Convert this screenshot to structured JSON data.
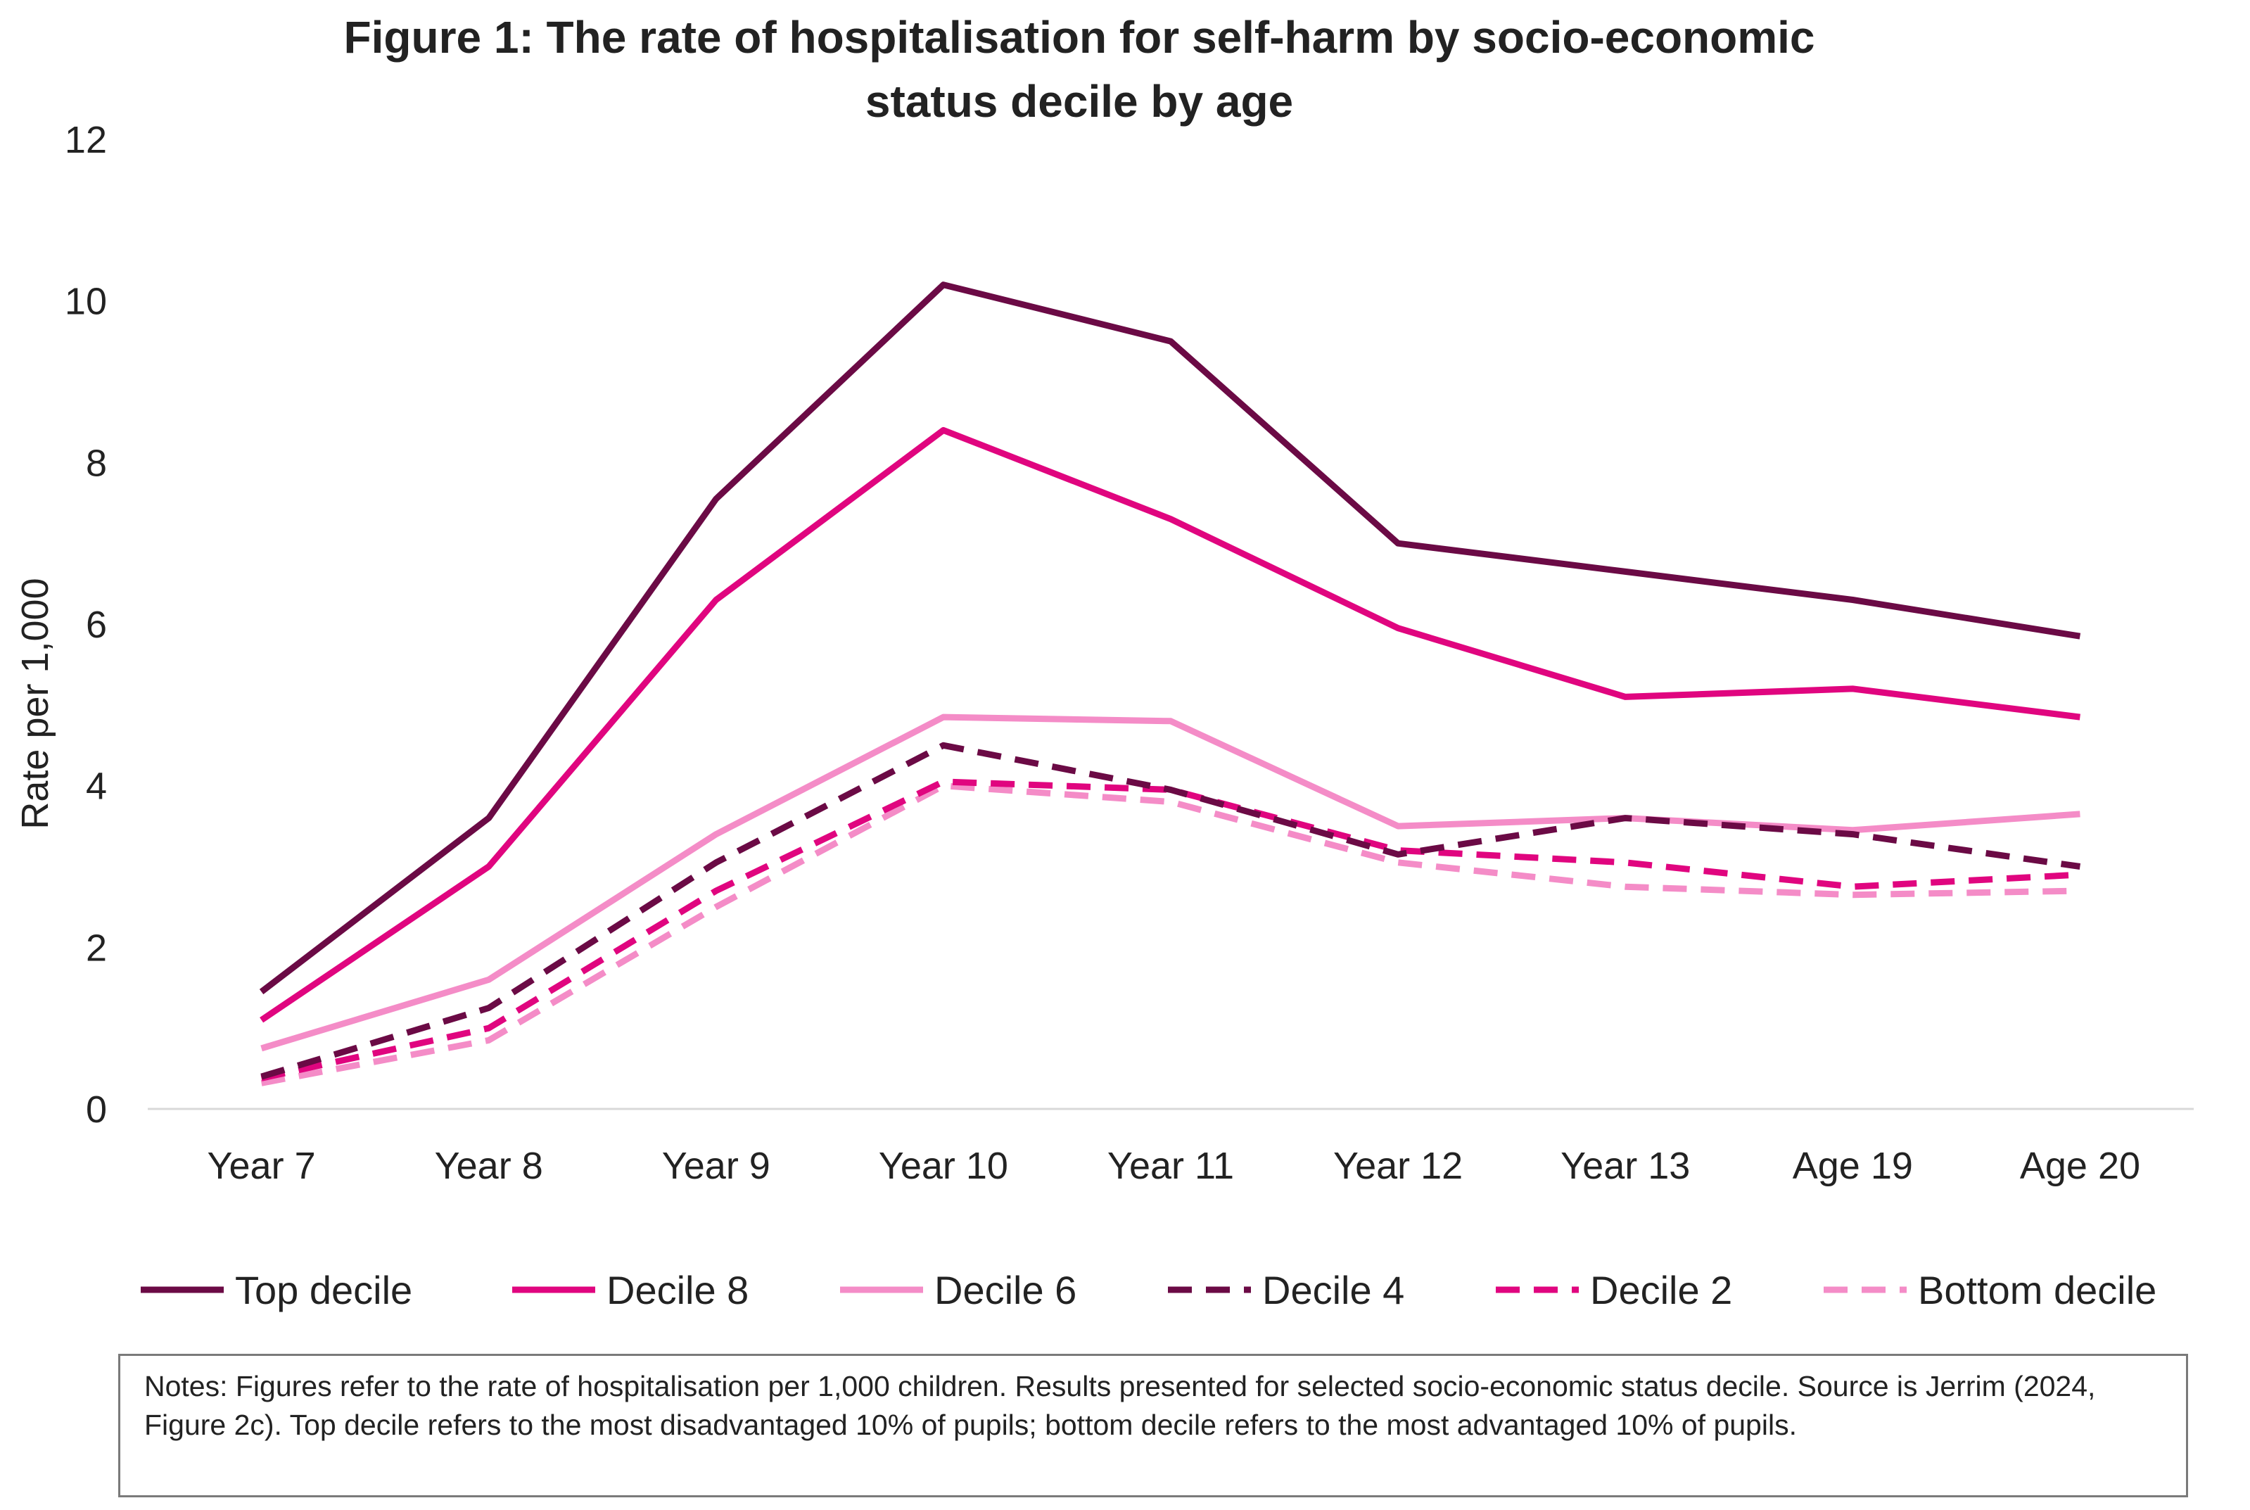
{
  "chart_data": {
    "type": "line",
    "title_lines": [
      "Figure 1: The rate of hospitalisation for self-harm by socio-economic",
      "status decile by age"
    ],
    "xlabel": "",
    "ylabel": "Rate per 1,000",
    "ylim": [
      0,
      12
    ],
    "yticks": [
      "0",
      "2",
      "4",
      "6",
      "8",
      "10",
      "12"
    ],
    "categories": [
      "Year 7",
      "Year 8",
      "Year 9",
      "Year 10",
      "Year 11",
      "Year 12",
      "Year 13",
      "Age 19",
      "Age 20"
    ],
    "legend_position": "bottom",
    "grid": false,
    "series": [
      {
        "name": "Top decile",
        "color": "#6b0a45",
        "dash": "solid",
        "values": [
          1.45,
          3.6,
          7.55,
          10.2,
          9.5,
          7.0,
          6.65,
          6.3,
          5.85
        ]
      },
      {
        "name": "Decile 8",
        "color": "#e0057f",
        "dash": "solid",
        "values": [
          1.1,
          3.0,
          6.3,
          8.4,
          7.3,
          5.95,
          5.1,
          5.2,
          4.85
        ]
      },
      {
        "name": "Decile 6",
        "color": "#f48cc7",
        "dash": "solid",
        "values": [
          0.75,
          1.6,
          3.4,
          4.85,
          4.8,
          3.5,
          3.6,
          3.45,
          3.65
        ]
      },
      {
        "name": "Decile 4",
        "color": "#6b0a45",
        "dash": "dashed",
        "values": [
          0.4,
          1.25,
          3.05,
          4.5,
          3.95,
          3.15,
          3.6,
          3.4,
          3.0
        ]
      },
      {
        "name": "Decile 2",
        "color": "#e0057f",
        "dash": "dashed",
        "values": [
          0.38,
          1.0,
          2.7,
          4.05,
          3.95,
          3.2,
          3.05,
          2.75,
          2.9
        ]
      },
      {
        "name": "Bottom decile",
        "color": "#f48cc7",
        "dash": "dashed",
        "values": [
          0.32,
          0.85,
          2.5,
          4.0,
          3.8,
          3.05,
          2.75,
          2.65,
          2.7
        ]
      }
    ]
  },
  "notes": "Notes: Figures refer to the rate of hospitalisation per 1,000 children. Results presented for selected socio-economic status decile. Source is Jerrim (2024, Figure 2c). Top decile refers to the most disadvantaged 10% of pupils; bottom decile refers to the most advantaged 10% of pupils."
}
